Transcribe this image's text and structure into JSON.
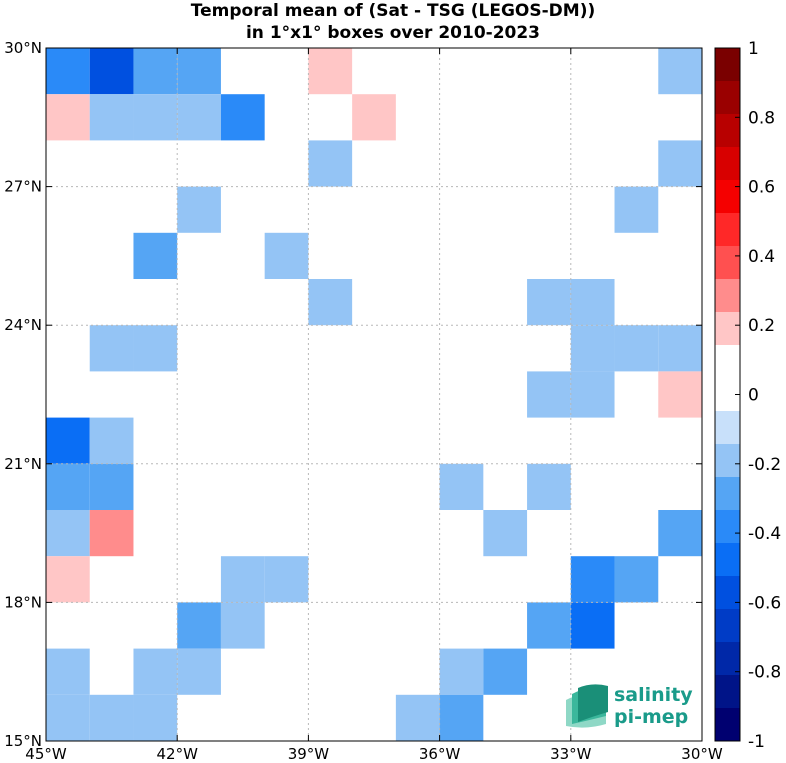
{
  "title_line1": "Temporal mean of (Sat - TSG (LEGOS-DM))",
  "title_line2": "in 1°x1° boxes over 2010-2023",
  "x_ticks": [
    {
      "value": -45,
      "label": "45°W"
    },
    {
      "value": -42,
      "label": "42°W"
    },
    {
      "value": -39,
      "label": "39°W"
    },
    {
      "value": -36,
      "label": "36°W"
    },
    {
      "value": -33,
      "label": "33°W"
    },
    {
      "value": -30,
      "label": "30°W"
    }
  ],
  "y_ticks": [
    {
      "value": 15,
      "label": "15°N"
    },
    {
      "value": 18,
      "label": "18°N"
    },
    {
      "value": 21,
      "label": "21°N"
    },
    {
      "value": 24,
      "label": "24°N"
    },
    {
      "value": 27,
      "label": "27°N"
    },
    {
      "value": 30,
      "label": "30°N"
    }
  ],
  "colorbar": {
    "range": [
      -1,
      1
    ],
    "labels": [
      "1",
      "0.8",
      "0.6",
      "0.4",
      "0.2",
      "0",
      "-0.2",
      "-0.4",
      "-0.6",
      "-0.8",
      "-1"
    ],
    "colors_top_to_bottom": [
      "#7a0000",
      "#9a0000",
      "#b80000",
      "#d80000",
      "#f50000",
      "#ff2828",
      "#ff5050",
      "#ff8c8c",
      "#ffc6c6",
      "#ffffff",
      "#ffffff",
      "#c8e0fa",
      "#94c4f5",
      "#55a5f4",
      "#2a8af8",
      "#0a6ef5",
      "#0050e0",
      "#003cc6",
      "#0028a8",
      "#001488",
      "#000070"
    ]
  },
  "logo": {
    "line1": "salinity",
    "line2": "pi-mep"
  },
  "chart_data": {
    "type": "heatmap",
    "title": "Temporal mean of (Sat - TSG (LEGOS-DM)) in 1°x1° boxes over 2010-2023",
    "xlim": [
      -45,
      -30
    ],
    "ylim": [
      15,
      30
    ],
    "cell_size_deg": 1,
    "value_range": [
      -1,
      1
    ],
    "grid": true,
    "cells_note": "lon/lat are lower-left corners of 1x1 boxes; v is the approximate mean difference",
    "cells": [
      {
        "lon": -45,
        "lat": 29,
        "v": -0.35
      },
      {
        "lon": -44,
        "lat": 29,
        "v": -0.55
      },
      {
        "lon": -43,
        "lat": 29,
        "v": -0.25
      },
      {
        "lon": -42,
        "lat": 29,
        "v": -0.25
      },
      {
        "lon": -39,
        "lat": 29,
        "v": 0.15
      },
      {
        "lon": -31,
        "lat": 29,
        "v": -0.15
      },
      {
        "lon": -45,
        "lat": 28,
        "v": 0.15
      },
      {
        "lon": -44,
        "lat": 28,
        "v": -0.15
      },
      {
        "lon": -43,
        "lat": 28,
        "v": -0.15
      },
      {
        "lon": -42,
        "lat": 28,
        "v": -0.15
      },
      {
        "lon": -41,
        "lat": 28,
        "v": -0.35
      },
      {
        "lon": -38,
        "lat": 28,
        "v": 0.15
      },
      {
        "lon": -39,
        "lat": 27,
        "v": -0.15
      },
      {
        "lon": -31,
        "lat": 27,
        "v": -0.15
      },
      {
        "lon": -42,
        "lat": 26,
        "v": -0.15
      },
      {
        "lon": -32,
        "lat": 26,
        "v": -0.15
      },
      {
        "lon": -43,
        "lat": 25,
        "v": -0.25
      },
      {
        "lon": -40,
        "lat": 25,
        "v": -0.15
      },
      {
        "lon": -39,
        "lat": 24,
        "v": -0.15
      },
      {
        "lon": -34,
        "lat": 24,
        "v": -0.15
      },
      {
        "lon": -33,
        "lat": 24,
        "v": -0.15
      },
      {
        "lon": -44,
        "lat": 23,
        "v": -0.15
      },
      {
        "lon": -43,
        "lat": 23,
        "v": -0.15
      },
      {
        "lon": -33,
        "lat": 23,
        "v": -0.15
      },
      {
        "lon": -32,
        "lat": 23,
        "v": -0.15
      },
      {
        "lon": -31,
        "lat": 23,
        "v": -0.15
      },
      {
        "lon": -34,
        "lat": 22,
        "v": -0.15
      },
      {
        "lon": -33,
        "lat": 22,
        "v": -0.15
      },
      {
        "lon": -31,
        "lat": 22,
        "v": 0.15
      },
      {
        "lon": -45,
        "lat": 21,
        "v": -0.45
      },
      {
        "lon": -44,
        "lat": 21,
        "v": -0.15
      },
      {
        "lon": -45,
        "lat": 20,
        "v": -0.25
      },
      {
        "lon": -44,
        "lat": 20,
        "v": -0.25
      },
      {
        "lon": -36,
        "lat": 20,
        "v": -0.15
      },
      {
        "lon": -34,
        "lat": 20,
        "v": -0.15
      },
      {
        "lon": -45,
        "lat": 19,
        "v": -0.15
      },
      {
        "lon": -44,
        "lat": 19,
        "v": 0.25
      },
      {
        "lon": -35,
        "lat": 19,
        "v": -0.15
      },
      {
        "lon": -31,
        "lat": 19,
        "v": -0.25
      },
      {
        "lon": -45,
        "lat": 18,
        "v": 0.15
      },
      {
        "lon": -41,
        "lat": 18,
        "v": -0.15
      },
      {
        "lon": -40,
        "lat": 18,
        "v": -0.15
      },
      {
        "lon": -33,
        "lat": 18,
        "v": -0.35
      },
      {
        "lon": -32,
        "lat": 18,
        "v": -0.25
      },
      {
        "lon": -42,
        "lat": 17,
        "v": -0.25
      },
      {
        "lon": -41,
        "lat": 17,
        "v": -0.15
      },
      {
        "lon": -34,
        "lat": 17,
        "v": -0.25
      },
      {
        "lon": -33,
        "lat": 17,
        "v": -0.45
      },
      {
        "lon": -45,
        "lat": 16,
        "v": -0.15
      },
      {
        "lon": -43,
        "lat": 16,
        "v": -0.15
      },
      {
        "lon": -42,
        "lat": 16,
        "v": -0.15
      },
      {
        "lon": -36,
        "lat": 16,
        "v": -0.15
      },
      {
        "lon": -35,
        "lat": 16,
        "v": -0.25
      },
      {
        "lon": -45,
        "lat": 15,
        "v": -0.15
      },
      {
        "lon": -44,
        "lat": 15,
        "v": -0.15
      },
      {
        "lon": -43,
        "lat": 15,
        "v": -0.15
      },
      {
        "lon": -37,
        "lat": 15,
        "v": -0.15
      },
      {
        "lon": -36,
        "lat": 15,
        "v": -0.25
      }
    ]
  }
}
